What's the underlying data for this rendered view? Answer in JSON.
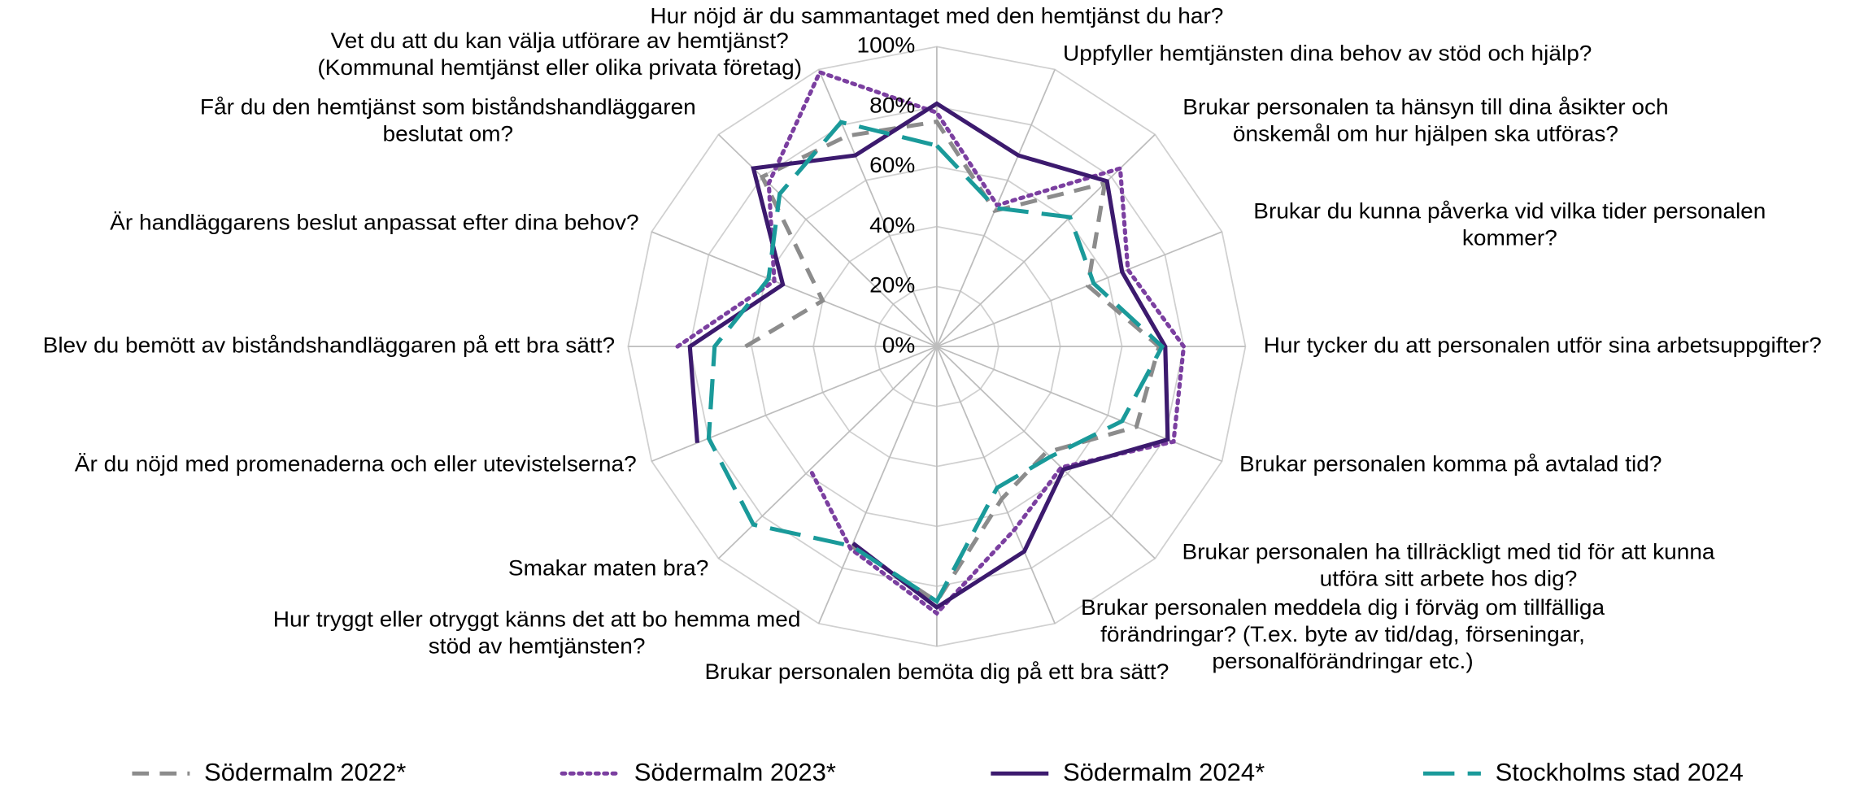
{
  "chart_data": {
    "type": "radar",
    "categories": [
      "Hur nöjd är du sammantaget med den hemtjänst du har?",
      "Uppfyller hemtjänsten dina behov av stöd och hjälp?",
      "Brukar personalen ta hänsyn till dina åsikter och\nönskemål om hur hjälpen ska utföras?",
      "Brukar du kunna påverka vid vilka tider personalen\nkommer?",
      "Hur tycker du att personalen utför sina  arbetsuppgifter?",
      "Brukar personalen komma på avtalad tid?",
      "Brukar personalen ha tillräckligt med tid för att kunna\nutföra sitt arbete hos dig?",
      "Brukar personalen meddela dig i förväg om tillfälliga\nförändringar? (T.ex. byte av tid/dag, förseningar,\npersonalförändringar etc.)",
      "Brukar personalen bemöta dig på ett bra sätt?",
      "Hur tryggt eller otryggt känns det att bo hemma med\nstöd av hemtjänsten?",
      "Smakar maten bra?",
      "Är du nöjd med promenaderna och eller utevistelserna?",
      "Blev du bemött av biståndshandläggaren på ett bra sätt?",
      "Är handläggarens beslut anpassat efter dina behov?",
      "Får du den hemtjänst som biståndshandläggaren\nbeslutat om?",
      "Vet du att du kan välja utförare av hemtjänst?\n(Kommunal hemtjänst eller olika privata företag)"
    ],
    "series": [
      {
        "name": "Södermalm 2022*",
        "color": "#8c8c8c",
        "style": "dashed",
        "values": [
          75,
          49,
          77,
          53,
          72,
          70,
          50,
          55,
          85,
          72,
          null,
          null,
          62,
          40,
          80,
          76
        ]
      },
      {
        "name": "Södermalm 2023*",
        "color": "#7b3fa0",
        "style": "dotted",
        "values": [
          78,
          51,
          84,
          67,
          80,
          83,
          57,
          66,
          89,
          73,
          58,
          null,
          84,
          57,
          77,
          99
        ]
      },
      {
        "name": "Södermalm 2024*",
        "color": "#3c1a6e",
        "style": "solid",
        "values": [
          81,
          69,
          78,
          65,
          74,
          81,
          58,
          74,
          87,
          71,
          null,
          84,
          80,
          54,
          84,
          69
        ]
      },
      {
        "name": "Stockholms stad 2024",
        "color": "#1a9a9a",
        "style": "longdash",
        "values": [
          67,
          50,
          61,
          55,
          73,
          65,
          52,
          51,
          85,
          72,
          84,
          80,
          72,
          59,
          72,
          81
        ]
      }
    ],
    "ylim": [
      0,
      100
    ],
    "yticks": [
      {
        "value": 0,
        "label": "0%"
      },
      {
        "value": 20,
        "label": "20%"
      },
      {
        "value": 40,
        "label": "40%"
      },
      {
        "value": 60,
        "label": "60%"
      },
      {
        "value": 80,
        "label": "80%"
      },
      {
        "value": 100,
        "label": "100%"
      }
    ],
    "grid": true,
    "legend": "bottom"
  }
}
